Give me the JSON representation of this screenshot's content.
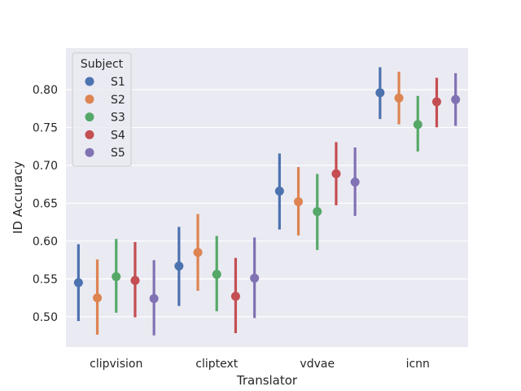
{
  "chart_data": {
    "type": "pointplot",
    "xlabel": "Translator",
    "ylabel": "ID Accuracy",
    "categories": [
      "clipvision",
      "cliptext",
      "vdvae",
      "icnn"
    ],
    "ylim": [
      0.46,
      0.855
    ],
    "yticks": [
      0.5,
      0.55,
      0.6,
      0.65,
      0.7,
      0.75,
      0.8
    ],
    "ytick_labels": [
      "0.50",
      "0.55",
      "0.60",
      "0.65",
      "0.70",
      "0.75",
      "0.80"
    ],
    "grid": true,
    "background": "#eaeaf2",
    "legend": {
      "title": "Subject",
      "placement": "top-left"
    },
    "series": [
      {
        "name": "S1",
        "color": "#4c72b0",
        "values": [
          0.545,
          0.567,
          0.666,
          0.796
        ],
        "ci_low": [
          0.496,
          0.516,
          0.617,
          0.763
        ],
        "ci_high": [
          0.594,
          0.617,
          0.714,
          0.828
        ]
      },
      {
        "name": "S2",
        "color": "#dd8452",
        "values": [
          0.525,
          0.585,
          0.652,
          0.789
        ],
        "ci_low": [
          0.478,
          0.536,
          0.609,
          0.756
        ],
        "ci_high": [
          0.574,
          0.634,
          0.696,
          0.822
        ]
      },
      {
        "name": "S3",
        "color": "#55a868",
        "values": [
          0.553,
          0.556,
          0.639,
          0.754
        ],
        "ci_low": [
          0.507,
          0.509,
          0.59,
          0.72
        ],
        "ci_high": [
          0.601,
          0.605,
          0.687,
          0.79
        ]
      },
      {
        "name": "S4",
        "color": "#c44e52",
        "values": [
          0.548,
          0.527,
          0.689,
          0.784
        ],
        "ci_low": [
          0.501,
          0.48,
          0.649,
          0.752
        ],
        "ci_high": [
          0.597,
          0.576,
          0.729,
          0.814
        ]
      },
      {
        "name": "S5",
        "color": "#8172b3",
        "values": [
          0.524,
          0.551,
          0.678,
          0.787
        ],
        "ci_low": [
          0.477,
          0.5,
          0.635,
          0.754
        ],
        "ci_high": [
          0.573,
          0.603,
          0.722,
          0.82
        ]
      }
    ]
  }
}
